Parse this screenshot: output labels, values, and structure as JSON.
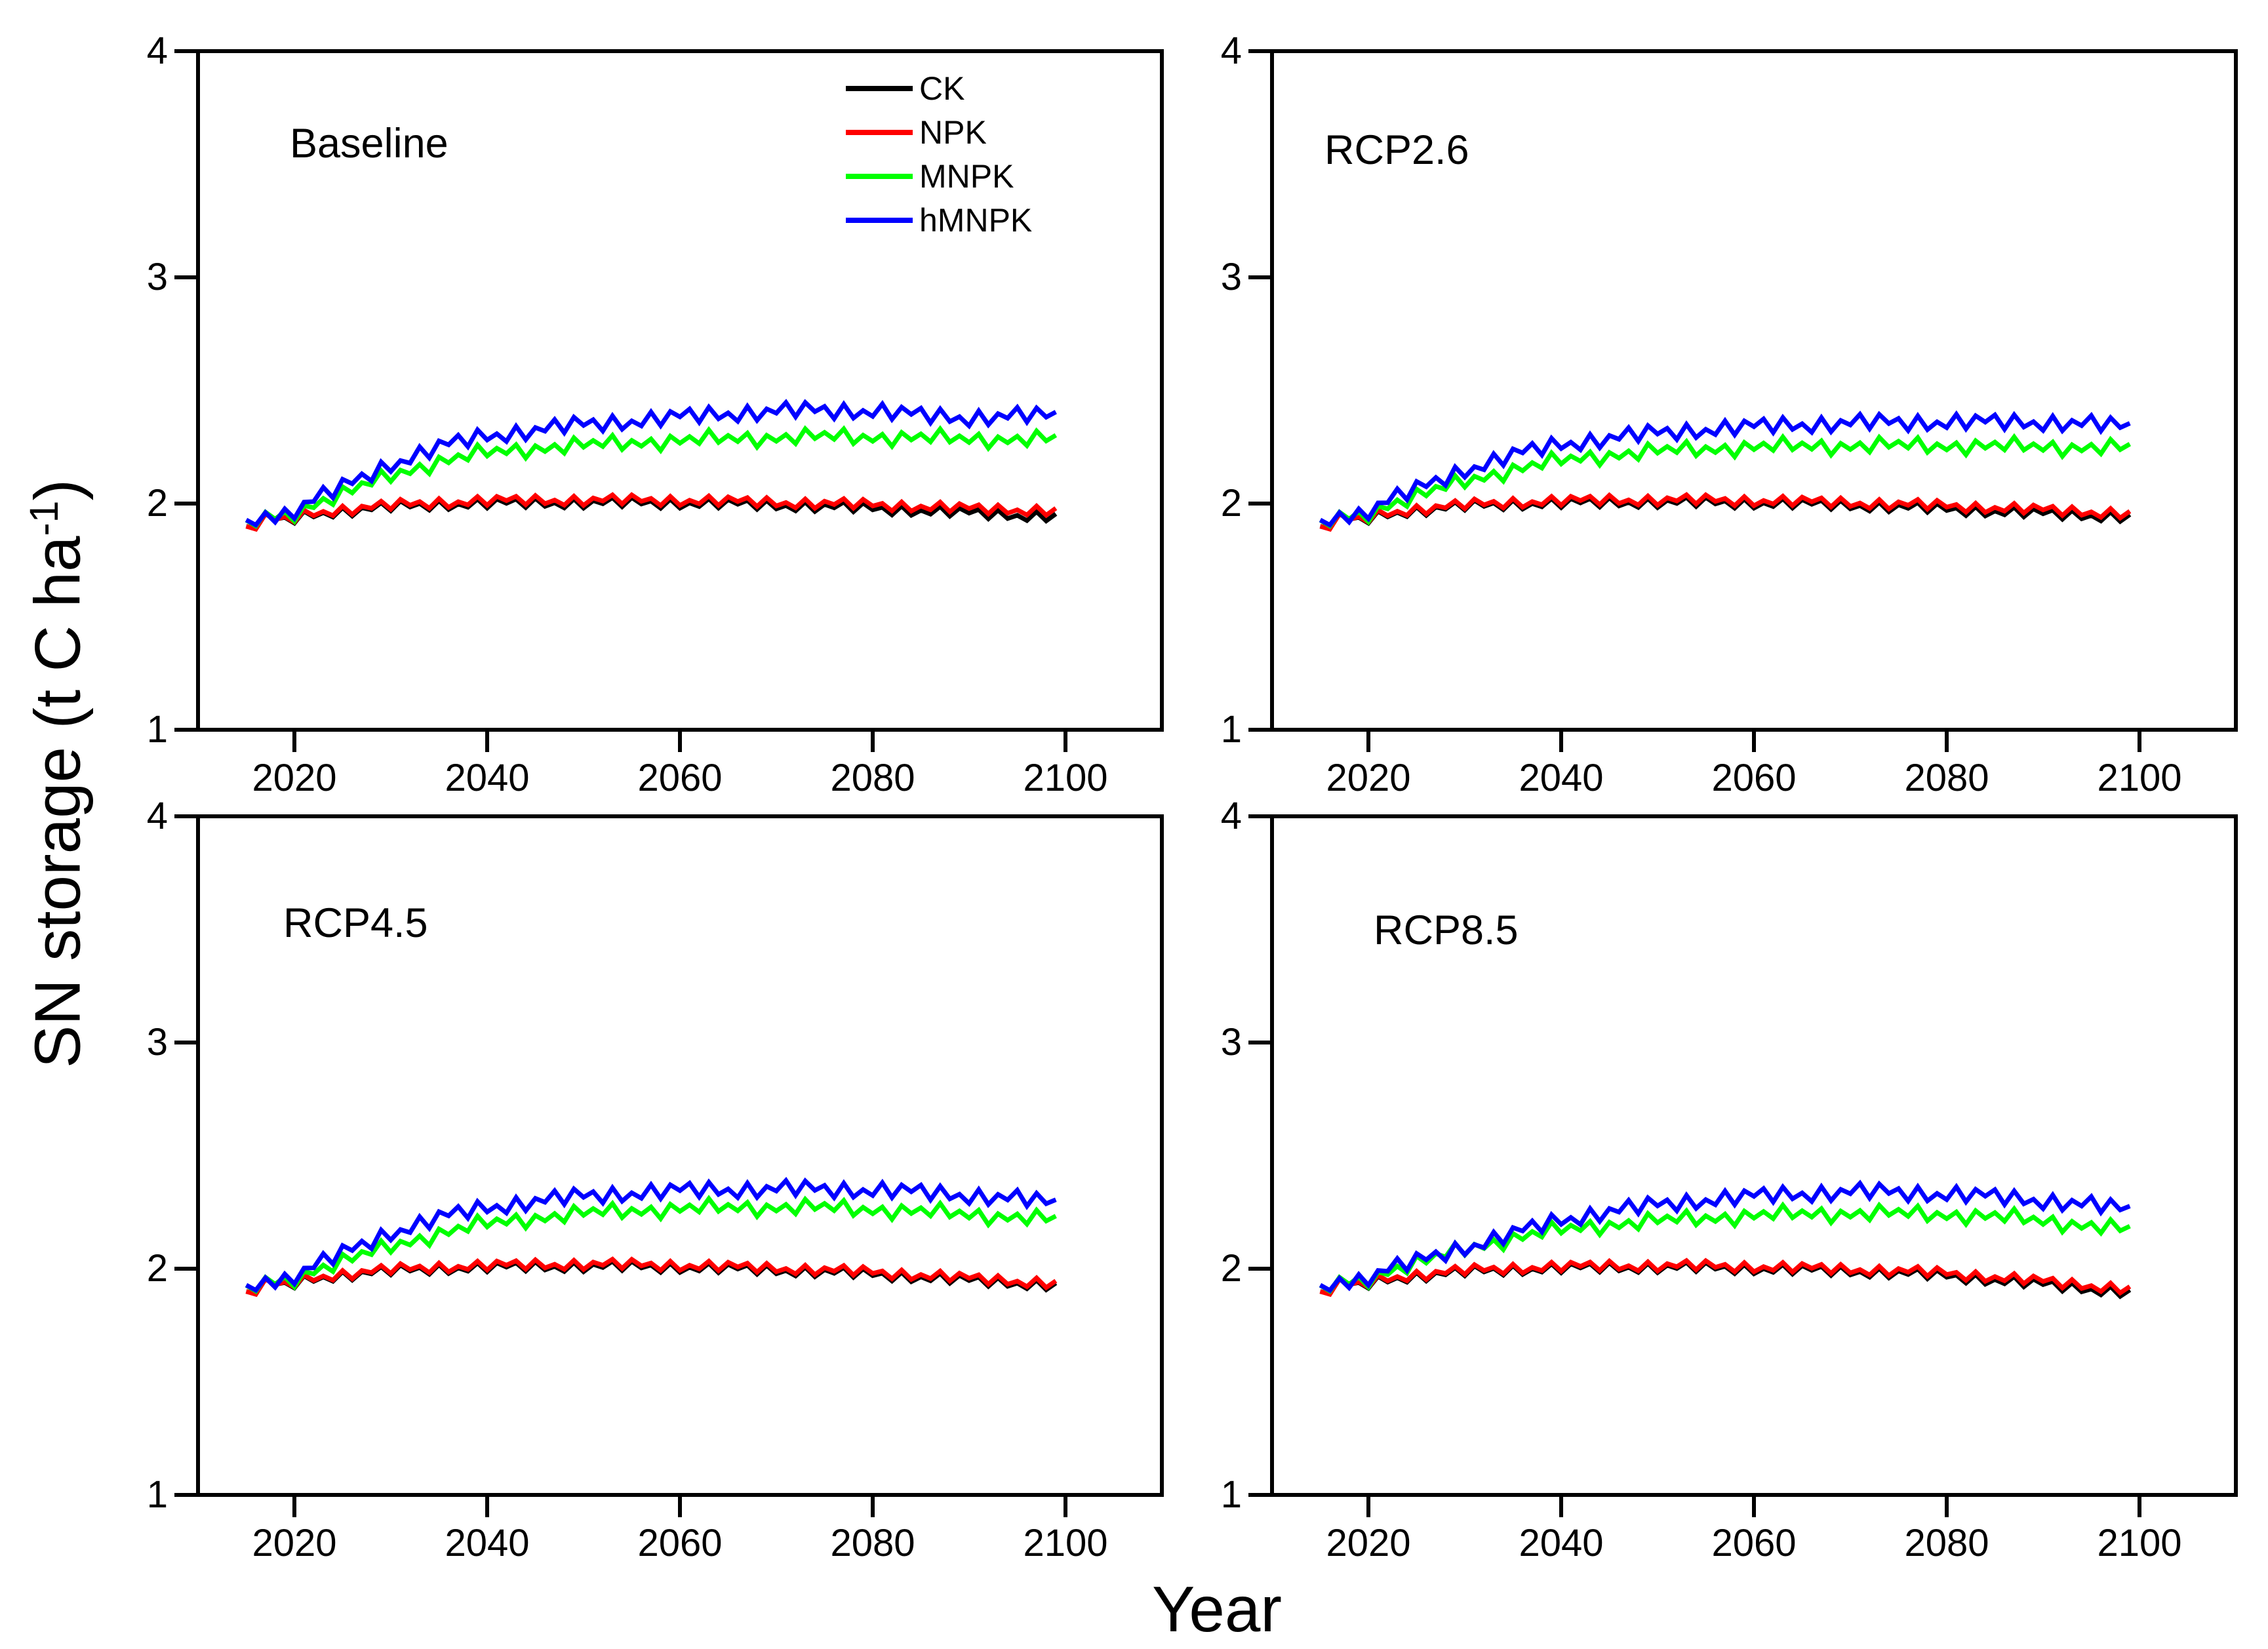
{
  "figure": {
    "xlabel": "Year",
    "ylabel_prefix": "SN storage (t C ha",
    "ylabel_superscript": "-1",
    "ylabel_suffix": ")",
    "background_color": "#ffffff",
    "axis_color": "#000000"
  },
  "legend": {
    "entries": [
      "CK",
      "NPK",
      "MNPK",
      "hMNPK"
    ],
    "colors": [
      "#000000",
      "#ff0000",
      "#00ff00",
      "#0000ff"
    ],
    "position": "inside-top-of-baseline-panel"
  },
  "chart_data": [
    {
      "type": "line",
      "panel": "Baseline",
      "xlim": [
        2010,
        2110
      ],
      "ylim": [
        1,
        4
      ],
      "x_ticks": [
        2020,
        2040,
        2060,
        2080,
        2100
      ],
      "y_ticks": [
        1,
        2,
        3,
        4
      ],
      "data_year_range": [
        2015,
        2099
      ],
      "anchor_years": [
        2015,
        2017,
        2019,
        2022,
        2025,
        2030,
        2035,
        2040,
        2045,
        2050,
        2055,
        2060,
        2065,
        2070,
        2075,
        2080,
        2085,
        2090,
        2095,
        2099
      ],
      "series": [
        {
          "name": "CK",
          "color": "#000000",
          "amp": 0.019,
          "phase": 0,
          "anchor_values": [
            1.88,
            1.94,
            1.92,
            1.955,
            1.965,
            1.985,
            1.995,
            2.0,
            2.002,
            2.003,
            2.003,
            2.002,
            1.998,
            1.992,
            1.986,
            1.978,
            1.968,
            1.958,
            1.948,
            1.943
          ]
        },
        {
          "name": "NPK",
          "color": "#ff0000",
          "amp": 0.019,
          "phase": 0,
          "anchor_values": [
            1.88,
            1.935,
            1.923,
            1.96,
            1.972,
            1.992,
            2.004,
            2.012,
            2.014,
            2.015,
            2.015,
            2.014,
            2.01,
            2.005,
            2.0,
            1.995,
            1.987,
            1.978,
            1.972,
            1.968
          ]
        },
        {
          "name": "MNPK",
          "color": "#00ff00",
          "amp": 0.026,
          "phase": 0.9,
          "anchor_values": [
            1.885,
            1.945,
            1.94,
            2.0,
            2.04,
            2.125,
            2.185,
            2.225,
            2.245,
            2.258,
            2.27,
            2.278,
            2.287,
            2.292,
            2.296,
            2.294,
            2.29,
            2.286,
            2.284,
            2.284
          ]
        },
        {
          "name": "hMNPK",
          "color": "#0000ff",
          "amp": 0.03,
          "phase": 1.7,
          "anchor_values": [
            1.89,
            1.955,
            1.95,
            2.02,
            2.07,
            2.175,
            2.25,
            2.3,
            2.325,
            2.35,
            2.365,
            2.383,
            2.398,
            2.408,
            2.413,
            2.41,
            2.39,
            2.38,
            2.386,
            2.39
          ]
        }
      ]
    },
    {
      "type": "line",
      "panel": "RCP2.6",
      "xlim": [
        2010,
        2110
      ],
      "ylim": [
        1,
        4
      ],
      "x_ticks": [
        2020,
        2040,
        2060,
        2080,
        2100
      ],
      "y_ticks": [
        1,
        2,
        3,
        4
      ],
      "data_year_range": [
        2015,
        2099
      ],
      "anchor_years": [
        2015,
        2017,
        2019,
        2022,
        2025,
        2030,
        2035,
        2040,
        2045,
        2050,
        2055,
        2060,
        2065,
        2070,
        2075,
        2080,
        2085,
        2090,
        2095,
        2099
      ],
      "series": [
        {
          "name": "CK",
          "color": "#000000",
          "amp": 0.019,
          "phase": 0,
          "anchor_values": [
            1.88,
            1.94,
            1.92,
            1.955,
            1.968,
            1.988,
            1.997,
            2.002,
            2.004,
            2.005,
            2.004,
            2.002,
            1.998,
            1.992,
            1.984,
            1.975,
            1.965,
            1.955,
            1.947,
            1.94
          ]
        },
        {
          "name": "NPK",
          "color": "#ff0000",
          "amp": 0.019,
          "phase": 0,
          "anchor_values": [
            1.88,
            1.935,
            1.923,
            1.96,
            1.974,
            1.994,
            2.005,
            2.012,
            2.015,
            2.016,
            2.015,
            2.013,
            2.009,
            2.003,
            1.997,
            1.99,
            1.981,
            1.972,
            1.963,
            1.955
          ]
        },
        {
          "name": "MNPK",
          "color": "#00ff00",
          "amp": 0.026,
          "phase": 0.9,
          "anchor_values": [
            1.885,
            1.945,
            1.94,
            1.995,
            2.03,
            2.1,
            2.15,
            2.19,
            2.215,
            2.232,
            2.242,
            2.25,
            2.254,
            2.256,
            2.257,
            2.256,
            2.254,
            2.251,
            2.248,
            2.245
          ]
        },
        {
          "name": "hMNPK",
          "color": "#0000ff",
          "amp": 0.03,
          "phase": 1.7,
          "anchor_values": [
            1.89,
            1.955,
            1.95,
            2.015,
            2.06,
            2.15,
            2.215,
            2.262,
            2.29,
            2.312,
            2.328,
            2.34,
            2.35,
            2.356,
            2.36,
            2.36,
            2.36,
            2.36,
            2.35,
            2.34
          ]
        }
      ]
    },
    {
      "type": "line",
      "panel": "RCP4.5",
      "xlim": [
        2010,
        2110
      ],
      "ylim": [
        1,
        4
      ],
      "x_ticks": [
        2020,
        2040,
        2060,
        2080,
        2100
      ],
      "y_ticks": [
        1,
        2,
        3,
        4
      ],
      "data_year_range": [
        2015,
        2099
      ],
      "anchor_years": [
        2015,
        2017,
        2019,
        2022,
        2025,
        2030,
        2035,
        2040,
        2045,
        2050,
        2055,
        2060,
        2065,
        2070,
        2075,
        2080,
        2085,
        2090,
        2095,
        2099
      ],
      "series": [
        {
          "name": "CK",
          "color": "#000000",
          "amp": 0.019,
          "phase": 0,
          "anchor_values": [
            1.88,
            1.94,
            1.92,
            1.958,
            1.97,
            1.99,
            2.0,
            2.006,
            2.009,
            2.01,
            2.009,
            2.006,
            2.0,
            1.993,
            1.985,
            1.975,
            1.962,
            1.948,
            1.936,
            1.925
          ]
        },
        {
          "name": "NPK",
          "color": "#ff0000",
          "amp": 0.019,
          "phase": 0,
          "anchor_values": [
            1.88,
            1.935,
            1.923,
            1.962,
            1.975,
            1.996,
            2.007,
            2.014,
            2.018,
            2.02,
            2.018,
            2.015,
            2.009,
            2.002,
            1.994,
            1.985,
            1.972,
            1.958,
            1.945,
            1.935
          ]
        },
        {
          "name": "MNPK",
          "color": "#00ff00",
          "amp": 0.026,
          "phase": 0.9,
          "anchor_values": [
            1.885,
            1.945,
            1.94,
            1.995,
            2.03,
            2.1,
            2.155,
            2.2,
            2.225,
            2.245,
            2.257,
            2.265,
            2.27,
            2.272,
            2.27,
            2.262,
            2.252,
            2.24,
            2.228,
            2.215
          ]
        },
        {
          "name": "hMNPK",
          "color": "#0000ff",
          "amp": 0.03,
          "phase": 1.7,
          "anchor_values": [
            1.89,
            1.955,
            1.95,
            2.015,
            2.065,
            2.16,
            2.225,
            2.27,
            2.3,
            2.32,
            2.335,
            2.345,
            2.35,
            2.352,
            2.352,
            2.348,
            2.338,
            2.325,
            2.308,
            2.29
          ]
        }
      ]
    },
    {
      "type": "line",
      "panel": "RCP8.5",
      "xlim": [
        2010,
        2110
      ],
      "ylim": [
        1,
        4
      ],
      "x_ticks": [
        2020,
        2040,
        2060,
        2080,
        2100
      ],
      "y_ticks": [
        1,
        2,
        3,
        4
      ],
      "data_year_range": [
        2015,
        2099
      ],
      "anchor_years": [
        2015,
        2017,
        2019,
        2022,
        2025,
        2030,
        2035,
        2040,
        2045,
        2050,
        2055,
        2060,
        2065,
        2070,
        2075,
        2080,
        2085,
        2090,
        2095,
        2099
      ],
      "series": [
        {
          "name": "CK",
          "color": "#000000",
          "amp": 0.019,
          "phase": 0,
          "anchor_values": [
            1.88,
            1.94,
            1.92,
            1.955,
            1.966,
            1.986,
            1.996,
            2.002,
            2.005,
            2.006,
            2.004,
            2.0,
            1.994,
            1.988,
            1.98,
            1.968,
            1.95,
            1.93,
            1.91,
            1.895
          ]
        },
        {
          "name": "NPK",
          "color": "#ff0000",
          "amp": 0.019,
          "phase": 0,
          "anchor_values": [
            1.88,
            1.935,
            1.923,
            1.96,
            1.972,
            1.992,
            2.002,
            2.009,
            2.012,
            2.013,
            2.012,
            2.009,
            2.003,
            1.997,
            1.99,
            1.98,
            1.963,
            1.944,
            1.925,
            1.91
          ]
        },
        {
          "name": "MNPK",
          "color": "#00ff00",
          "amp": 0.026,
          "phase": 0.9,
          "anchor_values": [
            1.885,
            1.945,
            1.94,
            1.992,
            2.022,
            2.088,
            2.135,
            2.172,
            2.195,
            2.212,
            2.225,
            2.235,
            2.242,
            2.245,
            2.244,
            2.24,
            2.23,
            2.212,
            2.19,
            2.17
          ]
        },
        {
          "name": "hMNPK",
          "color": "#0000ff",
          "amp": 0.03,
          "phase": 1.7,
          "anchor_values": [
            1.89,
            1.953,
            1.948,
            2.0,
            2.03,
            2.095,
            2.155,
            2.215,
            2.255,
            2.282,
            2.305,
            2.32,
            2.332,
            2.34,
            2.338,
            2.33,
            2.318,
            2.302,
            2.28,
            2.262
          ]
        }
      ]
    }
  ]
}
